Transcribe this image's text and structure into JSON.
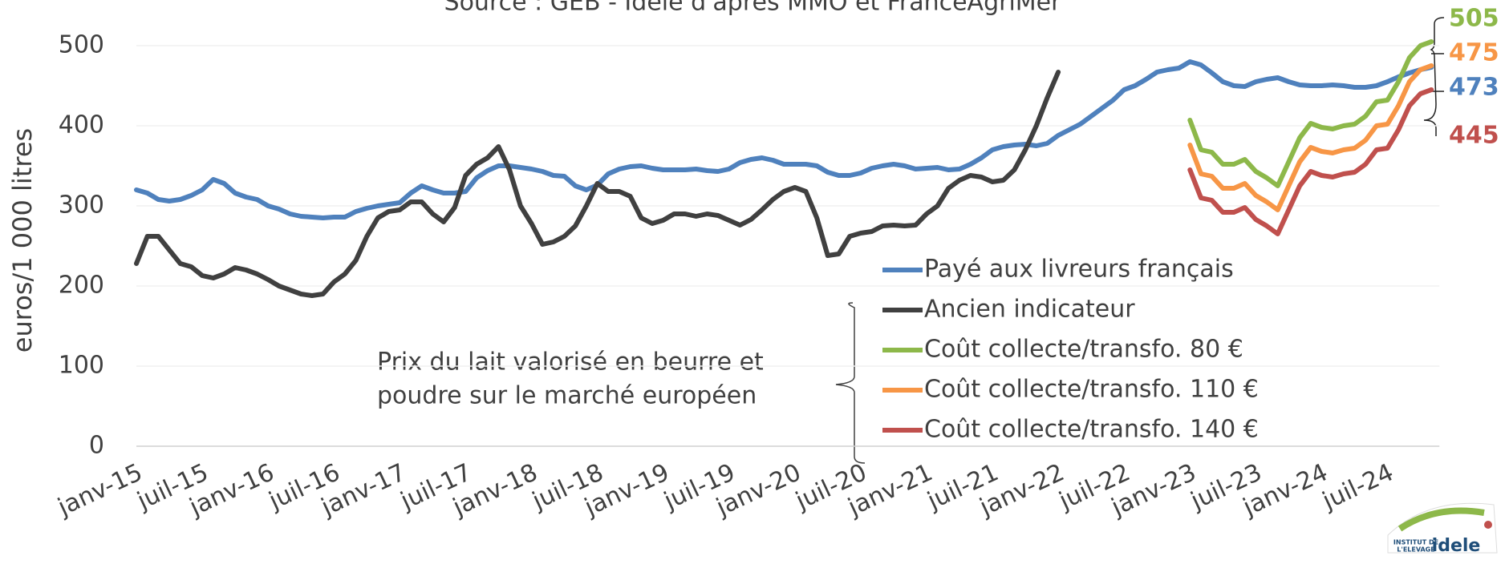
{
  "chart_data": {
    "type": "line",
    "subtitle": "Source : GEB - Idele d'après MMO et FranceAgriMer",
    "y_label": "euros/1 000 litres",
    "annotation": [
      "Prix du lait valorisé en beurre et",
      "poudre sur le marché européen"
    ],
    "logo": {
      "line1": "INSTITUT DE",
      "line2": "L'ELEVAGE",
      "brand": "idele"
    },
    "categories": [
      "janv-15",
      null,
      null,
      null,
      null,
      null,
      "juil-15",
      null,
      null,
      null,
      null,
      null,
      "janv-16",
      null,
      null,
      null,
      null,
      null,
      "juil-16",
      null,
      null,
      null,
      null,
      null,
      "janv-17",
      null,
      null,
      null,
      null,
      null,
      "juil-17",
      null,
      null,
      null,
      null,
      null,
      "janv-18",
      null,
      null,
      null,
      null,
      null,
      "juil-18",
      null,
      null,
      null,
      null,
      null,
      "janv-19",
      null,
      null,
      null,
      null,
      null,
      "juil-19",
      null,
      null,
      null,
      null,
      null,
      "janv-20",
      null,
      null,
      null,
      null,
      null,
      "juil-20",
      null,
      null,
      null,
      null,
      null,
      "janv-21",
      null,
      null,
      null,
      null,
      null,
      "juil-21",
      null,
      null,
      null,
      null,
      null,
      "janv-22",
      null,
      null,
      null,
      null,
      null,
      "juil-22",
      null,
      null,
      null,
      null,
      null,
      "janv-23",
      null,
      null,
      null,
      null,
      null,
      "juil-23",
      null,
      null,
      null,
      null,
      null,
      "janv-24",
      null,
      null,
      null,
      null,
      null,
      "juil-24",
      null,
      null,
      null,
      null
    ],
    "series": [
      {
        "name": "Payé aux livreurs français",
        "color": "#4f81bd",
        "values": [
          320,
          316,
          308,
          306,
          308,
          313,
          320,
          333,
          328,
          316,
          311,
          308,
          300,
          296,
          290,
          287,
          286,
          285,
          286,
          286,
          293,
          297,
          300,
          302,
          304,
          316,
          325,
          320,
          316,
          316,
          318,
          335,
          344,
          350,
          350,
          348,
          346,
          343,
          338,
          337,
          325,
          320,
          326,
          340,
          346,
          349,
          350,
          347,
          345,
          345,
          345,
          346,
          344,
          343,
          346,
          354,
          358,
          360,
          357,
          352,
          352,
          352,
          350,
          342,
          338,
          338,
          341,
          347,
          350,
          352,
          350,
          346,
          347,
          348,
          345,
          346,
          352,
          360,
          370,
          374,
          376,
          377,
          375,
          378,
          388,
          395,
          402,
          412,
          422,
          432,
          445,
          450,
          458,
          467,
          470,
          472,
          480,
          476,
          466,
          455,
          450,
          449,
          455,
          458,
          460,
          455,
          451,
          450,
          450,
          451,
          450,
          448,
          448,
          450,
          455,
          461,
          466,
          470,
          473
        ]
      },
      {
        "name": "Ancien indicateur",
        "color": "#404040",
        "values": [
          228,
          262,
          262,
          245,
          228,
          224,
          213,
          210,
          215,
          223,
          220,
          215,
          208,
          200,
          195,
          190,
          188,
          190,
          205,
          215,
          232,
          262,
          285,
          293,
          295,
          305,
          305,
          290,
          280,
          298,
          338,
          352,
          360,
          374,
          345,
          300,
          278,
          252,
          255,
          262,
          275,
          300,
          328,
          318,
          318,
          312,
          285,
          278,
          282,
          290,
          290,
          287,
          290,
          288,
          282,
          276,
          283,
          295,
          308,
          318,
          323,
          318,
          285,
          238,
          240,
          262,
          266,
          268,
          275,
          276,
          275,
          276,
          290,
          300,
          322,
          332,
          338,
          336,
          330,
          332,
          345,
          370,
          400,
          435,
          467,
          null,
          null,
          null,
          null,
          null,
          null,
          null,
          null,
          null,
          null,
          null,
          null,
          null,
          null,
          null,
          null,
          null,
          null,
          null,
          null,
          null,
          null,
          null,
          null,
          null,
          null,
          null,
          null,
          null,
          null,
          null,
          null,
          null,
          null
        ]
      },
      {
        "name": "Coût collecte/transfo. 80 €",
        "color": "#8db84a",
        "values": [
          null,
          null,
          null,
          null,
          null,
          null,
          null,
          null,
          null,
          null,
          null,
          null,
          null,
          null,
          null,
          null,
          null,
          null,
          null,
          null,
          null,
          null,
          null,
          null,
          null,
          null,
          null,
          null,
          null,
          null,
          null,
          null,
          null,
          null,
          null,
          null,
          null,
          null,
          null,
          null,
          null,
          null,
          null,
          null,
          null,
          null,
          null,
          null,
          null,
          null,
          null,
          null,
          null,
          null,
          null,
          null,
          null,
          null,
          null,
          null,
          null,
          null,
          null,
          null,
          null,
          null,
          null,
          null,
          null,
          null,
          null,
          null,
          null,
          null,
          null,
          null,
          null,
          null,
          null,
          null,
          null,
          null,
          null,
          null,
          null,
          null,
          null,
          null,
          null,
          null,
          null,
          null,
          null,
          null,
          null,
          null,
          407,
          370,
          367,
          352,
          352,
          358,
          343,
          335,
          325,
          355,
          385,
          403,
          398,
          396,
          400,
          402,
          412,
          430,
          432,
          455,
          485,
          500,
          505
        ]
      },
      {
        "name": "Coût collecte/transfo. 110 €",
        "color": "#f79646",
        "values": [
          null,
          null,
          null,
          null,
          null,
          null,
          null,
          null,
          null,
          null,
          null,
          null,
          null,
          null,
          null,
          null,
          null,
          null,
          null,
          null,
          null,
          null,
          null,
          null,
          null,
          null,
          null,
          null,
          null,
          null,
          null,
          null,
          null,
          null,
          null,
          null,
          null,
          null,
          null,
          null,
          null,
          null,
          null,
          null,
          null,
          null,
          null,
          null,
          null,
          null,
          null,
          null,
          null,
          null,
          null,
          null,
          null,
          null,
          null,
          null,
          null,
          null,
          null,
          null,
          null,
          null,
          null,
          null,
          null,
          null,
          null,
          null,
          null,
          null,
          null,
          null,
          null,
          null,
          null,
          null,
          null,
          null,
          null,
          null,
          null,
          null,
          null,
          null,
          null,
          null,
          null,
          null,
          null,
          null,
          null,
          null,
          376,
          340,
          337,
          322,
          322,
          328,
          313,
          305,
          295,
          325,
          355,
          373,
          368,
          366,
          370,
          372,
          382,
          400,
          402,
          425,
          455,
          470,
          475
        ]
      },
      {
        "name": "Coût collecte/transfo. 140 €",
        "color": "#c0504d",
        "values": [
          null,
          null,
          null,
          null,
          null,
          null,
          null,
          null,
          null,
          null,
          null,
          null,
          null,
          null,
          null,
          null,
          null,
          null,
          null,
          null,
          null,
          null,
          null,
          null,
          null,
          null,
          null,
          null,
          null,
          null,
          null,
          null,
          null,
          null,
          null,
          null,
          null,
          null,
          null,
          null,
          null,
          null,
          null,
          null,
          null,
          null,
          null,
          null,
          null,
          null,
          null,
          null,
          null,
          null,
          null,
          null,
          null,
          null,
          null,
          null,
          null,
          null,
          null,
          null,
          null,
          null,
          null,
          null,
          null,
          null,
          null,
          null,
          null,
          null,
          null,
          null,
          null,
          null,
          null,
          null,
          null,
          null,
          null,
          null,
          null,
          null,
          null,
          null,
          null,
          null,
          null,
          null,
          null,
          null,
          null,
          null,
          345,
          310,
          307,
          292,
          292,
          298,
          283,
          275,
          265,
          295,
          325,
          343,
          338,
          336,
          340,
          342,
          352,
          370,
          372,
          395,
          425,
          440,
          445
        ]
      }
    ],
    "ylim": [
      0,
      520
    ],
    "yticks": [
      0,
      100,
      200,
      300,
      400,
      500
    ],
    "grid": true,
    "legend": "lower right"
  }
}
